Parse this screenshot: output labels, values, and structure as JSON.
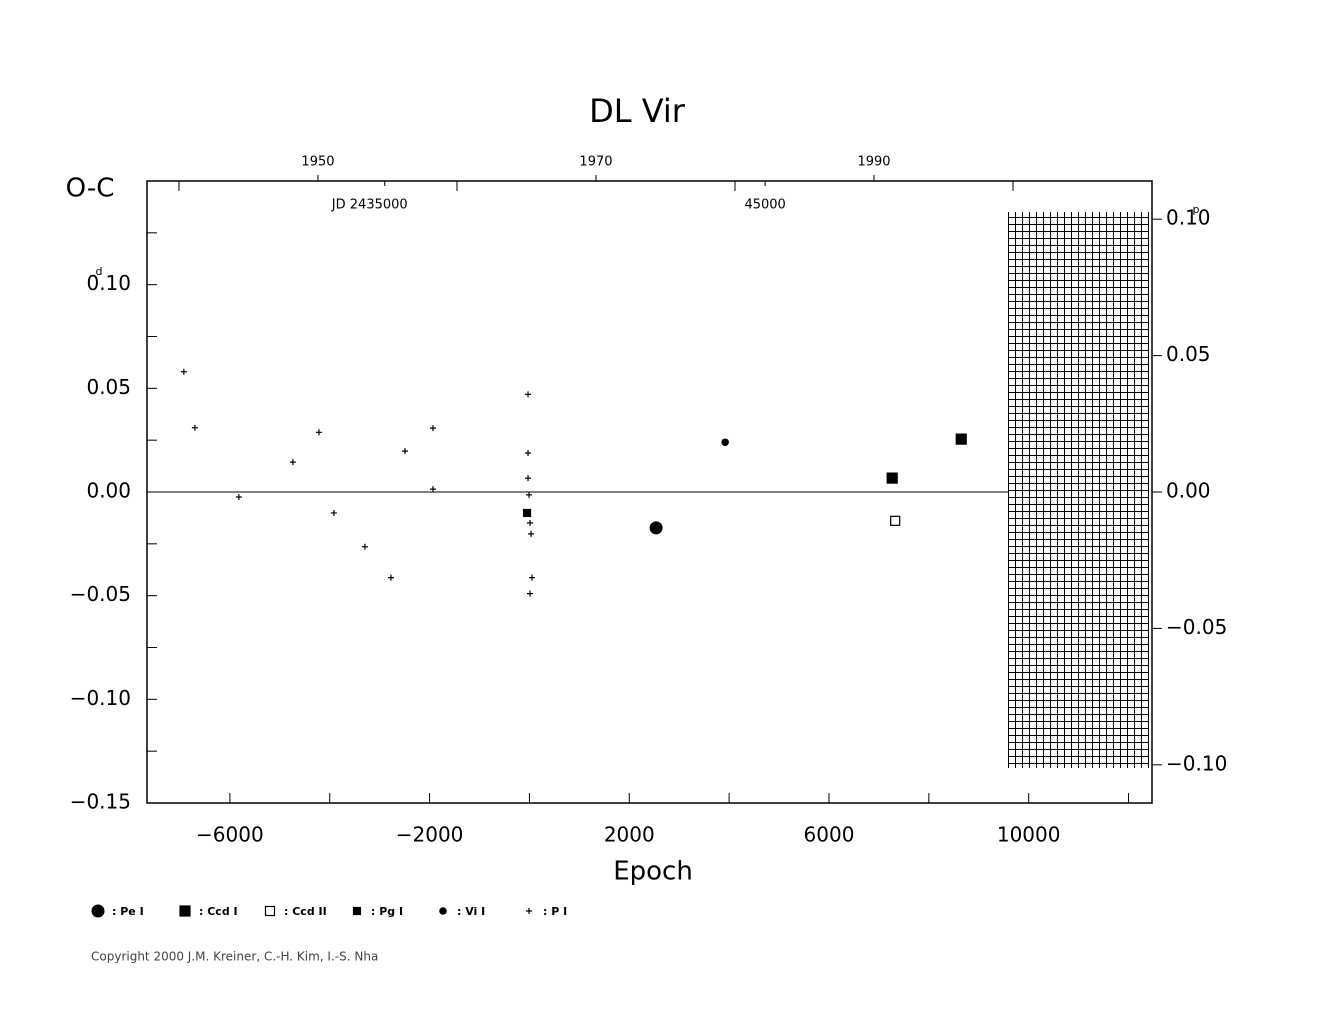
{
  "chart_data": {
    "type": "scatter",
    "title": "DL Vir",
    "x_label": "Epoch",
    "y_label": "O-C",
    "y_unit": "d",
    "y2_unit": "p",
    "xlim": [
      -7660,
      12470
    ],
    "xticks": [
      {
        "value": -6000,
        "label": "−6000"
      },
      {
        "value": -2000,
        "label": "−2000"
      },
      2000,
      6000,
      10000
    ],
    "xminor": [
      -4000,
      0,
      4000,
      8000,
      12000
    ],
    "ylim": [
      -0.15,
      0.15
    ],
    "yticks": [
      {
        "value": -0.15,
        "label": "−0.15"
      },
      {
        "value": -0.1,
        "label": "−0.10"
      },
      {
        "value": -0.05,
        "label": "−0.05"
      },
      {
        "value": 0,
        "label": "0.00"
      },
      {
        "value": 0.05,
        "label": "0.05"
      },
      {
        "value": 0.1,
        "label": "0.10"
      }
    ],
    "yminor": [
      -0.125,
      -0.075,
      -0.025,
      0.025,
      0.075,
      0.125
    ],
    "y2lim": [
      -0.114,
      0.114
    ],
    "y2ticks": [
      {
        "value": -0.1,
        "label": "−0.10"
      },
      {
        "value": -0.05,
        "label": "−0.05"
      },
      {
        "value": 0,
        "label": "0.00"
      },
      {
        "value": 0.05,
        "label": "0.05"
      },
      {
        "value": 0.1,
        "label": "0.10"
      }
    ],
    "year_lim": [
      1937.7,
      2010
    ],
    "year_ticks": [
      1950,
      1970,
      1990
    ],
    "year_minor": [
      1940,
      1960,
      1980,
      2000
    ],
    "jd_lim": [
      2428750,
      2455170
    ],
    "jd_ticks": [
      {
        "value": 2435000,
        "label": "JD  2435000"
      },
      {
        "value": 2445000,
        "label": "45000"
      }
    ],
    "series": [
      {
        "name": ": Pe I",
        "marker": "circle",
        "color": "#000",
        "x": [
          2537
        ],
        "values": [
          -0.0173
        ]
      },
      {
        "name": ": Ccd I",
        "marker": "square",
        "color": "#000",
        "x": [
          7266,
          8649
        ],
        "values": [
          0.0067,
          0.0255
        ]
      },
      {
        "name": ": Ccd II",
        "marker": "open-square",
        "color": "#000",
        "x": [
          7326
        ],
        "values": [
          -0.0139
        ]
      },
      {
        "name": ": Pg I",
        "marker": "small-square",
        "color": "#000",
        "x": [
          -48
        ],
        "values": [
          -0.0101
        ]
      },
      {
        "name": ": Vi I",
        "marker": "dot",
        "color": "#000",
        "x": [
          3920
        ],
        "values": [
          0.024
        ]
      },
      {
        "name": ": P I",
        "marker": "plus",
        "color": "#000",
        "x": [
          -6922,
          -6701,
          -5820,
          -4738,
          -4216,
          -3916,
          -3295,
          -2774,
          -2493,
          -1932,
          -1932,
          -28,
          -28,
          -28,
          -8,
          12,
          32,
          52,
          12
        ],
        "values": [
          0.058,
          0.031,
          -0.0024,
          0.0144,
          0.0288,
          -0.0101,
          -0.0264,
          -0.0413,
          0.0197,
          0.0308,
          0.0014,
          0.0471,
          0.0188,
          0.0067,
          -0.0014,
          -0.0149,
          -0.0202,
          -0.0413,
          -0.049
        ]
      }
    ],
    "copyright": "Copyright 2000 J.M. Kreiner, C.-H. Kim, I.-S. Nha"
  }
}
